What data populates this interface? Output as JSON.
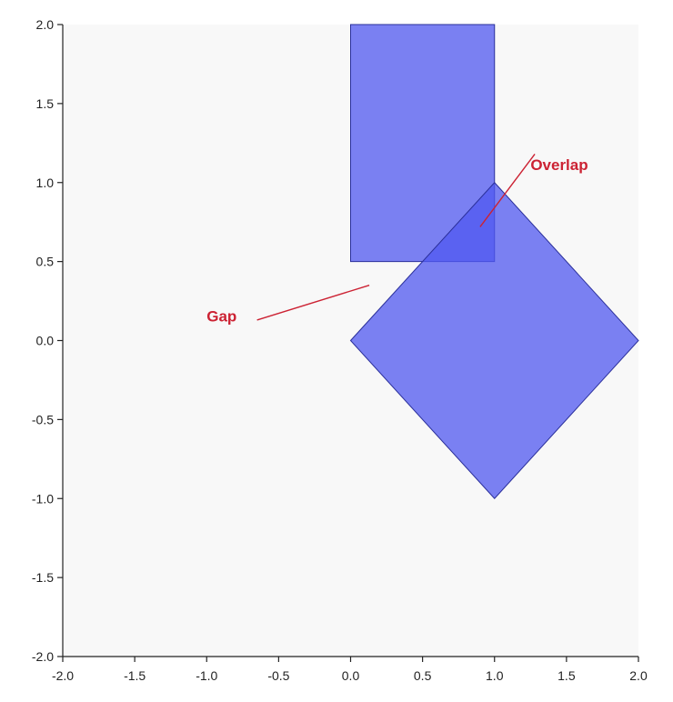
{
  "chart_data": {
    "type": "polygon",
    "title": "",
    "xlabel": "",
    "ylabel": "",
    "xlim": [
      -2.0,
      2.0
    ],
    "ylim": [
      -2.0,
      2.0
    ],
    "x_ticks": [
      "-2.0",
      "-1.5",
      "-1.0",
      "-0.5",
      "0.0",
      "0.5",
      "1.0",
      "1.5",
      "2.0"
    ],
    "y_ticks": [
      "-2.0",
      "-1.5",
      "-1.0",
      "-0.5",
      "0.0",
      "0.5",
      "1.0",
      "1.5",
      "2.0"
    ],
    "grid": false,
    "legend": "none",
    "shapes": [
      {
        "kind": "rectangle",
        "points": [
          [
            0.0,
            0.5
          ],
          [
            1.0,
            0.5
          ],
          [
            1.0,
            2.0
          ],
          [
            0.0,
            2.0
          ]
        ],
        "fill": "#5058f0",
        "stroke": "#2a2f9a",
        "opacity": 0.75
      },
      {
        "kind": "diamond",
        "points": [
          [
            0.0,
            0.0
          ],
          [
            1.0,
            1.0
          ],
          [
            2.0,
            0.0
          ],
          [
            1.0,
            -1.0
          ]
        ],
        "fill": "#5058f0",
        "stroke": "#2a2f9a",
        "opacity": 0.75
      }
    ],
    "annotations": [
      {
        "text": "Overlap",
        "color": "#cc2233",
        "label_at": [
          1.25,
          1.08
        ],
        "arrow_from": [
          1.28,
          1.18
        ],
        "arrow_to": [
          0.9,
          0.72
        ]
      },
      {
        "text": "Gap",
        "color": "#cc2233",
        "label_at": [
          -1.0,
          0.12
        ],
        "arrow_from": [
          -0.65,
          0.13
        ],
        "arrow_to": [
          0.13,
          0.35
        ]
      }
    ]
  },
  "colors": {
    "background": "#ffffff",
    "plot_background": "#f8f8f8",
    "axis": "#222222"
  }
}
